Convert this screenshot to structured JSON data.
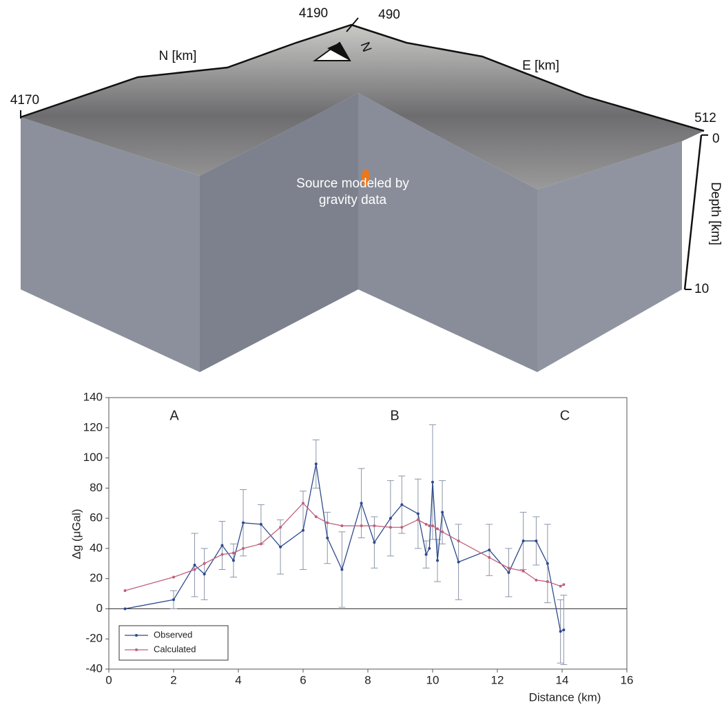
{
  "block_diagram": {
    "north_label": "4190",
    "east_start_label": "490",
    "north_axis": "N [km]",
    "east_axis": "E [km]",
    "north_start_label": "4170",
    "east_end_label": "512",
    "depth_top": "0",
    "depth_bottom": "10",
    "depth_axis": "Depth [km]",
    "arrow_label": "N",
    "source_label": [
      "Source modeled by",
      "gravity data"
    ]
  },
  "chart_data": {
    "type": "line",
    "x_label": "Distance (km)",
    "y_label": "Δg (μGal)",
    "annotations": [
      "A",
      "B",
      "C"
    ],
    "xlim": [
      0,
      16
    ],
    "xticks": [
      0,
      2,
      4,
      6,
      8,
      10,
      12,
      14,
      16
    ],
    "ylim": [
      -40,
      140
    ],
    "yticks": [
      -40,
      -20,
      0,
      20,
      40,
      60,
      80,
      100,
      120,
      140
    ],
    "legend": "lower left",
    "x": [
      0.5,
      2.0,
      2.65,
      2.95,
      3.5,
      3.85,
      4.15,
      4.7,
      5.3,
      6.0,
      6.4,
      6.75,
      7.2,
      7.8,
      8.2,
      8.7,
      9.05,
      9.55,
      9.8,
      9.9,
      10.0,
      10.15,
      10.3,
      10.8,
      11.75,
      12.35,
      12.8,
      13.2,
      13.55,
      13.95,
      14.05
    ],
    "series": [
      {
        "name": "Observed",
        "color": "#2e4a8c",
        "values": [
          0,
          6,
          29,
          23,
          42,
          32,
          57,
          56,
          41,
          52,
          96,
          47,
          26,
          70,
          44,
          60,
          69,
          63,
          36,
          40,
          84,
          32,
          64,
          31,
          39,
          24,
          45,
          45,
          30,
          -15,
          -14
        ],
        "errors": [
          null,
          6,
          21,
          17,
          16,
          11,
          22,
          13,
          18,
          26,
          16,
          17,
          25,
          23,
          17,
          25,
          19,
          23,
          9,
          null,
          38,
          14,
          21,
          25,
          17,
          16,
          19,
          16,
          26,
          21,
          23
        ]
      },
      {
        "name": "Calculated",
        "color": "#c0607a",
        "values": [
          12,
          21,
          26,
          30,
          36,
          37,
          40,
          43,
          54,
          70,
          61,
          57,
          55,
          55,
          55,
          54,
          54,
          59,
          56,
          55,
          55,
          53,
          51,
          45,
          34,
          27,
          25,
          19,
          18,
          15,
          16
        ]
      }
    ]
  }
}
